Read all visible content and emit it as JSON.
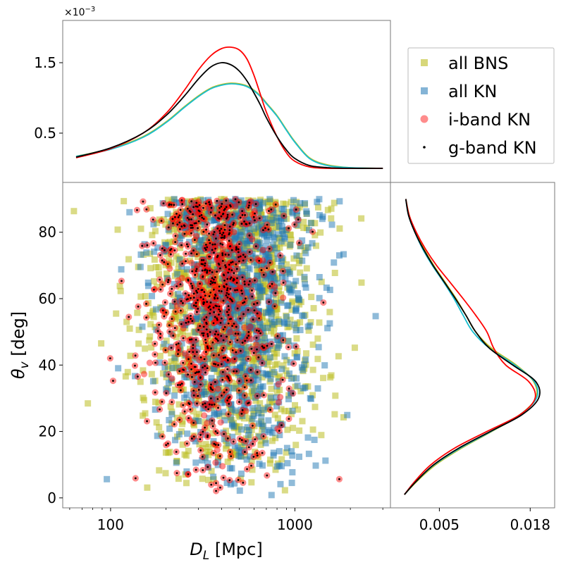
{
  "chart_data": [
    {
      "panel": "top-marginal",
      "type": "line",
      "xlabel": "",
      "ylabel": "",
      "x_scale": "log",
      "xlim": [
        55,
        3300
      ],
      "ylim": [
        -0.2,
        2.1
      ],
      "y_multiplier_label": "×10",
      "y_multiplier_exp": "−3",
      "yticks": [
        0.5,
        1.5
      ],
      "ytick_labels": [
        "0.5",
        "1.5"
      ],
      "series": [
        {
          "name": "all BNS",
          "color": "#bcbd22",
          "x": [
            65,
            100,
            150,
            200,
            250,
            300,
            350,
            400,
            450,
            500,
            550,
            600,
            650,
            700,
            800,
            900,
            1000,
            1200,
            1500,
            2000,
            3000
          ],
          "y": [
            0.17,
            0.28,
            0.45,
            0.66,
            0.87,
            1.03,
            1.14,
            1.19,
            1.21,
            1.2,
            1.17,
            1.11,
            1.03,
            0.93,
            0.75,
            0.55,
            0.38,
            0.15,
            0.05,
            0.01,
            0.0
          ]
        },
        {
          "name": "all KN",
          "color": "#17becf",
          "x": [
            65,
            100,
            150,
            200,
            250,
            300,
            350,
            400,
            450,
            500,
            550,
            600,
            650,
            700,
            800,
            900,
            1000,
            1200,
            1500,
            2000,
            3000
          ],
          "y": [
            0.17,
            0.27,
            0.44,
            0.65,
            0.86,
            1.02,
            1.13,
            1.18,
            1.2,
            1.19,
            1.16,
            1.1,
            1.02,
            0.92,
            0.74,
            0.54,
            0.37,
            0.14,
            0.04,
            0.01,
            0.0
          ]
        },
        {
          "name": "i-band KN",
          "color": "#ff0000",
          "x": [
            65,
            100,
            150,
            200,
            250,
            300,
            350,
            400,
            450,
            500,
            550,
            600,
            650,
            700,
            800,
            900,
            1000,
            1200,
            1500,
            2000,
            3000
          ],
          "y": [
            0.15,
            0.28,
            0.5,
            0.78,
            1.1,
            1.4,
            1.6,
            1.7,
            1.72,
            1.68,
            1.55,
            1.32,
            1.05,
            0.8,
            0.45,
            0.22,
            0.1,
            0.02,
            0.0,
            0.0,
            0.0
          ]
        },
        {
          "name": "g-band KN",
          "color": "#000000",
          "x": [
            65,
            100,
            150,
            200,
            250,
            300,
            350,
            400,
            450,
            500,
            550,
            600,
            650,
            700,
            800,
            900,
            1000,
            1200,
            1500,
            2000,
            3000
          ],
          "y": [
            0.16,
            0.29,
            0.5,
            0.75,
            1.02,
            1.27,
            1.44,
            1.5,
            1.47,
            1.38,
            1.24,
            1.07,
            0.9,
            0.72,
            0.45,
            0.26,
            0.14,
            0.04,
            0.01,
            0.0,
            0.0
          ]
        }
      ]
    },
    {
      "panel": "main-scatter",
      "type": "scatter",
      "xlabel": "D",
      "xlabel_sub": "L",
      "xlabel_unit": " [Mpc]",
      "ylabel": "θ",
      "ylabel_sub": "v",
      "ylabel_unit": " [deg]",
      "x_scale": "log",
      "xlim": [
        55,
        3300
      ],
      "ylim": [
        -3,
        95
      ],
      "xticks": [
        100,
        1000
      ],
      "xtick_labels": [
        "100",
        "1000"
      ],
      "yticks": [
        0,
        20,
        40,
        60,
        80
      ],
      "ytick_labels": [
        "0",
        "20",
        "40",
        "60",
        "80"
      ],
      "series": [
        {
          "name": "all BNS",
          "marker": "square",
          "color": "#bcbd22",
          "count": 1200,
          "logd_mean": 2.64,
          "logd_sd": 0.23,
          "theta_range": [
            0,
            90
          ]
        },
        {
          "name": "all KN",
          "marker": "square",
          "color": "#1f77b4",
          "count": 1000,
          "logd_mean": 2.69,
          "logd_sd": 0.21,
          "theta_range": [
            0,
            90
          ]
        },
        {
          "name": "i-band KN",
          "marker": "circle",
          "color": "#ff0000",
          "count": 800,
          "logd_mean": 2.56,
          "logd_sd": 0.18,
          "theta_range": [
            2,
            90
          ]
        },
        {
          "name": "g-band KN",
          "marker": "point",
          "color": "#000000",
          "count": 700,
          "logd_mean": 2.56,
          "logd_sd": 0.18,
          "theta_range": [
            2,
            90
          ]
        }
      ]
    },
    {
      "panel": "right-marginal",
      "type": "line",
      "orientation": "horizontal",
      "xlim": [
        -0.002,
        0.0215
      ],
      "ylim": [
        -3,
        95
      ],
      "xticks": [
        0.005,
        0.018
      ],
      "xtick_labels": [
        "0.005",
        "0.018"
      ],
      "series": [
        {
          "name": "all BNS",
          "color": "#bcbd22",
          "theta": [
            1,
            5,
            10,
            15,
            20,
            25,
            30,
            35,
            40,
            45,
            50,
            55,
            60,
            65,
            70,
            75,
            80,
            85,
            90
          ],
          "density": [
            0.0,
            0.0018,
            0.0045,
            0.0082,
            0.0125,
            0.0165,
            0.0188,
            0.0185,
            0.016,
            0.0125,
            0.0102,
            0.0088,
            0.0074,
            0.0058,
            0.0042,
            0.0028,
            0.0016,
            0.0007,
            0.0002
          ]
        },
        {
          "name": "all KN",
          "color": "#17becf",
          "theta": [
            1,
            5,
            10,
            15,
            20,
            25,
            30,
            35,
            40,
            45,
            50,
            55,
            60,
            65,
            70,
            75,
            80,
            85,
            90
          ],
          "density": [
            0.0,
            0.0017,
            0.0043,
            0.008,
            0.0124,
            0.0165,
            0.0189,
            0.0186,
            0.0158,
            0.0122,
            0.0098,
            0.0084,
            0.0071,
            0.0056,
            0.004,
            0.0026,
            0.0015,
            0.0006,
            0.0002
          ]
        },
        {
          "name": "i-band KN",
          "color": "#ff0000",
          "theta": [
            1,
            5,
            10,
            15,
            20,
            25,
            30,
            35,
            40,
            45,
            50,
            55,
            60,
            65,
            70,
            75,
            80,
            85,
            90
          ],
          "density": [
            0.0,
            0.0015,
            0.0038,
            0.0072,
            0.0118,
            0.0165,
            0.0187,
            0.0178,
            0.0145,
            0.0128,
            0.0118,
            0.0102,
            0.0084,
            0.0065,
            0.0046,
            0.003,
            0.0017,
            0.0007,
            0.0002
          ]
        },
        {
          "name": "g-band KN",
          "color": "#000000",
          "theta": [
            1,
            5,
            10,
            15,
            20,
            25,
            30,
            35,
            40,
            45,
            50,
            55,
            60,
            65,
            70,
            75,
            80,
            85,
            90
          ],
          "density": [
            0.0,
            0.0017,
            0.0042,
            0.0078,
            0.0123,
            0.0168,
            0.0192,
            0.0188,
            0.0155,
            0.0122,
            0.0102,
            0.0088,
            0.0073,
            0.0057,
            0.0041,
            0.0027,
            0.0015,
            0.0006,
            0.0002
          ]
        }
      ]
    }
  ],
  "legend": {
    "position": "upper-right",
    "items": [
      {
        "label": "all BNS",
        "marker": "square",
        "color": "#bcbd22"
      },
      {
        "label": "all KN",
        "marker": "square",
        "color": "#1f77b4"
      },
      {
        "label": "i-band KN",
        "marker": "circle",
        "color": "#ff0000"
      },
      {
        "label": "g-band KN",
        "marker": "point",
        "color": "#000000"
      }
    ]
  }
}
